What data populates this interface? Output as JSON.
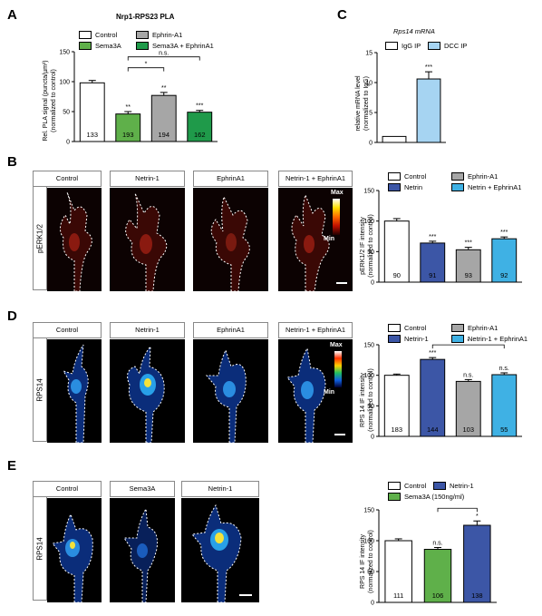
{
  "panels": {
    "A": {
      "letter": "A",
      "title": "Nrp1-RPS23 PLA",
      "ylabel": [
        "Rel. PLA signal (puncta/µm²)",
        "(normalized to control)"
      ],
      "legend": [
        "Control",
        "Ephrin-A1",
        "Sema3A",
        "Sema3A + EphrinA1"
      ]
    },
    "B": {
      "letter": "B",
      "side_label": "pERK1/2",
      "headers": [
        "Control",
        "Netrin-1",
        "EphrinA1",
        "Netrin-1 + EphrinA1"
      ],
      "scale_max": "Max",
      "scale_min": "Min",
      "ylabel": [
        "pERK1/2 IF intensity",
        "(normalized to control)"
      ],
      "legend": [
        "Control",
        "Ephrin-A1",
        "Netrin",
        "Netrin + EphrinA1"
      ]
    },
    "C": {
      "letter": "C",
      "title": "Rps14 mRNA",
      "ylabel": [
        "relative mRNA level",
        "(normalized to IgG)"
      ],
      "legend": [
        "IgG IP",
        "DCC IP"
      ]
    },
    "D": {
      "letter": "D",
      "side_label": "RPS14",
      "headers": [
        "Control",
        "Netrin-1",
        "EphrinA1",
        "Netrin-1 + EphrinA1"
      ],
      "scale_max": "Max",
      "scale_min": "Min",
      "ylabel": [
        "RPS 14 IF intensity",
        "(normalized to control)"
      ],
      "legend": [
        "Control",
        "Ephrin-A1",
        "Netrin-1",
        "Netrin-1 + EphrinA1"
      ]
    },
    "E": {
      "letter": "E",
      "side_label": "RPS14",
      "headers": [
        "Control",
        "Sema3A",
        "Netrin-1"
      ],
      "ylabel": [
        "RPS 14 IF intensity",
        "(normalized to control)"
      ],
      "legend": [
        "Control",
        "Netrin-1",
        "Sema3A (150ng/ml)"
      ]
    }
  },
  "chart_data": [
    {
      "id": "A",
      "type": "bar",
      "categories": [
        "Control",
        "Sema3A",
        "Ephrin-A1",
        "Sema3A + EphrinA1"
      ],
      "values": [
        98,
        46,
        77,
        49
      ],
      "errors": [
        4,
        4,
        5,
        3
      ],
      "n": [
        "133",
        "193",
        "194",
        "162"
      ],
      "stars": [
        "",
        "**",
        "**",
        "***"
      ],
      "ylim": [
        0,
        150
      ],
      "yticks": [
        "0",
        "50",
        "100",
        "150"
      ],
      "colors": [
        "#ffffff",
        "#5fb04a",
        "#a6a6a6",
        "#1f9a4a"
      ],
      "brackets": [
        {
          "from": 1,
          "to": 2,
          "label": "*"
        },
        {
          "from": 1,
          "to": 3,
          "label": "n.s."
        }
      ]
    },
    {
      "id": "B",
      "type": "bar",
      "categories": [
        "Control",
        "Netrin",
        "Ephrin-A1",
        "Netrin + EphrinA1"
      ],
      "values": [
        100,
        64,
        53,
        71
      ],
      "errors": [
        4,
        3,
        4,
        3
      ],
      "n": [
        "90",
        "91",
        "93",
        "92"
      ],
      "stars": [
        "",
        "***",
        "***",
        "***"
      ],
      "ylim": [
        0,
        150
      ],
      "yticks": [
        "0",
        "50",
        "100",
        "150"
      ],
      "colors": [
        "#ffffff",
        "#3c56a6",
        "#a6a6a6",
        "#3fb1e4"
      ],
      "brackets": []
    },
    {
      "id": "C",
      "type": "bar",
      "categories": [
        "IgG IP",
        "DCC IP"
      ],
      "values": [
        1,
        10.6
      ],
      "errors": [
        0,
        1.2
      ],
      "n": [
        "",
        ""
      ],
      "stars": [
        "",
        "***"
      ],
      "ylim": [
        0,
        15
      ],
      "yticks": [
        "0",
        "5",
        "10",
        "15"
      ],
      "colors": [
        "#ffffff",
        "#a6d4f2"
      ],
      "brackets": []
    },
    {
      "id": "D",
      "type": "bar",
      "categories": [
        "Control",
        "Netrin-1",
        "Ephrin-A1",
        "Netrin-1 + EphrinA1"
      ],
      "values": [
        100,
        126,
        90,
        101
      ],
      "errors": [
        2,
        3,
        3,
        3
      ],
      "n": [
        "183",
        "144",
        "103",
        "55"
      ],
      "stars": [
        "",
        "***",
        "n.s.",
        "n.s."
      ],
      "ylim": [
        0,
        150
      ],
      "yticks": [
        "0",
        "50",
        "100",
        "150"
      ],
      "colors": [
        "#ffffff",
        "#3c56a6",
        "#a6a6a6",
        "#3fb1e4"
      ],
      "brackets": [
        {
          "from": 1,
          "to": 3,
          "label": "*"
        }
      ]
    },
    {
      "id": "E",
      "type": "bar",
      "categories": [
        "Control",
        "Sema3A (150ng/ml)",
        "Netrin-1"
      ],
      "values": [
        100,
        86,
        125
      ],
      "errors": [
        3,
        3,
        7
      ],
      "n": [
        "111",
        "106",
        "138"
      ],
      "stars": [
        "",
        "n.s.",
        "*"
      ],
      "ylim": [
        0,
        150
      ],
      "yticks": [
        "0",
        "50",
        "100",
        "150"
      ],
      "colors": [
        "#ffffff",
        "#5fb04a",
        "#3c56a6"
      ],
      "brackets": [
        {
          "from": 1,
          "to": 2,
          "label": "***"
        }
      ]
    }
  ]
}
